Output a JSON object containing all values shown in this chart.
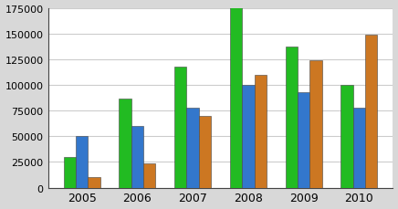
{
  "years": [
    "2005",
    "2006",
    "2007",
    "2008",
    "2009",
    "2010"
  ],
  "green_values": [
    30000,
    87000,
    118000,
    178000,
    137000,
    100000
  ],
  "blue_values": [
    50000,
    60000,
    78000,
    100000,
    93000,
    78000
  ],
  "orange_values": [
    10000,
    24000,
    70000,
    110000,
    124000,
    149000
  ],
  "green_color": "#22bb22",
  "blue_color": "#3377cc",
  "orange_color": "#cc7722",
  "ylim": [
    0,
    175000
  ],
  "yticks": [
    0,
    25000,
    50000,
    75000,
    100000,
    125000,
    150000,
    175000
  ],
  "plot_bg_color": "#ffffff",
  "fig_bg_color": "#d8d8d8",
  "grid_color": "#cccccc",
  "bar_width": 0.22,
  "border_color": "#444444",
  "tick_fontsize": 8,
  "xlabel_fontsize": 9
}
